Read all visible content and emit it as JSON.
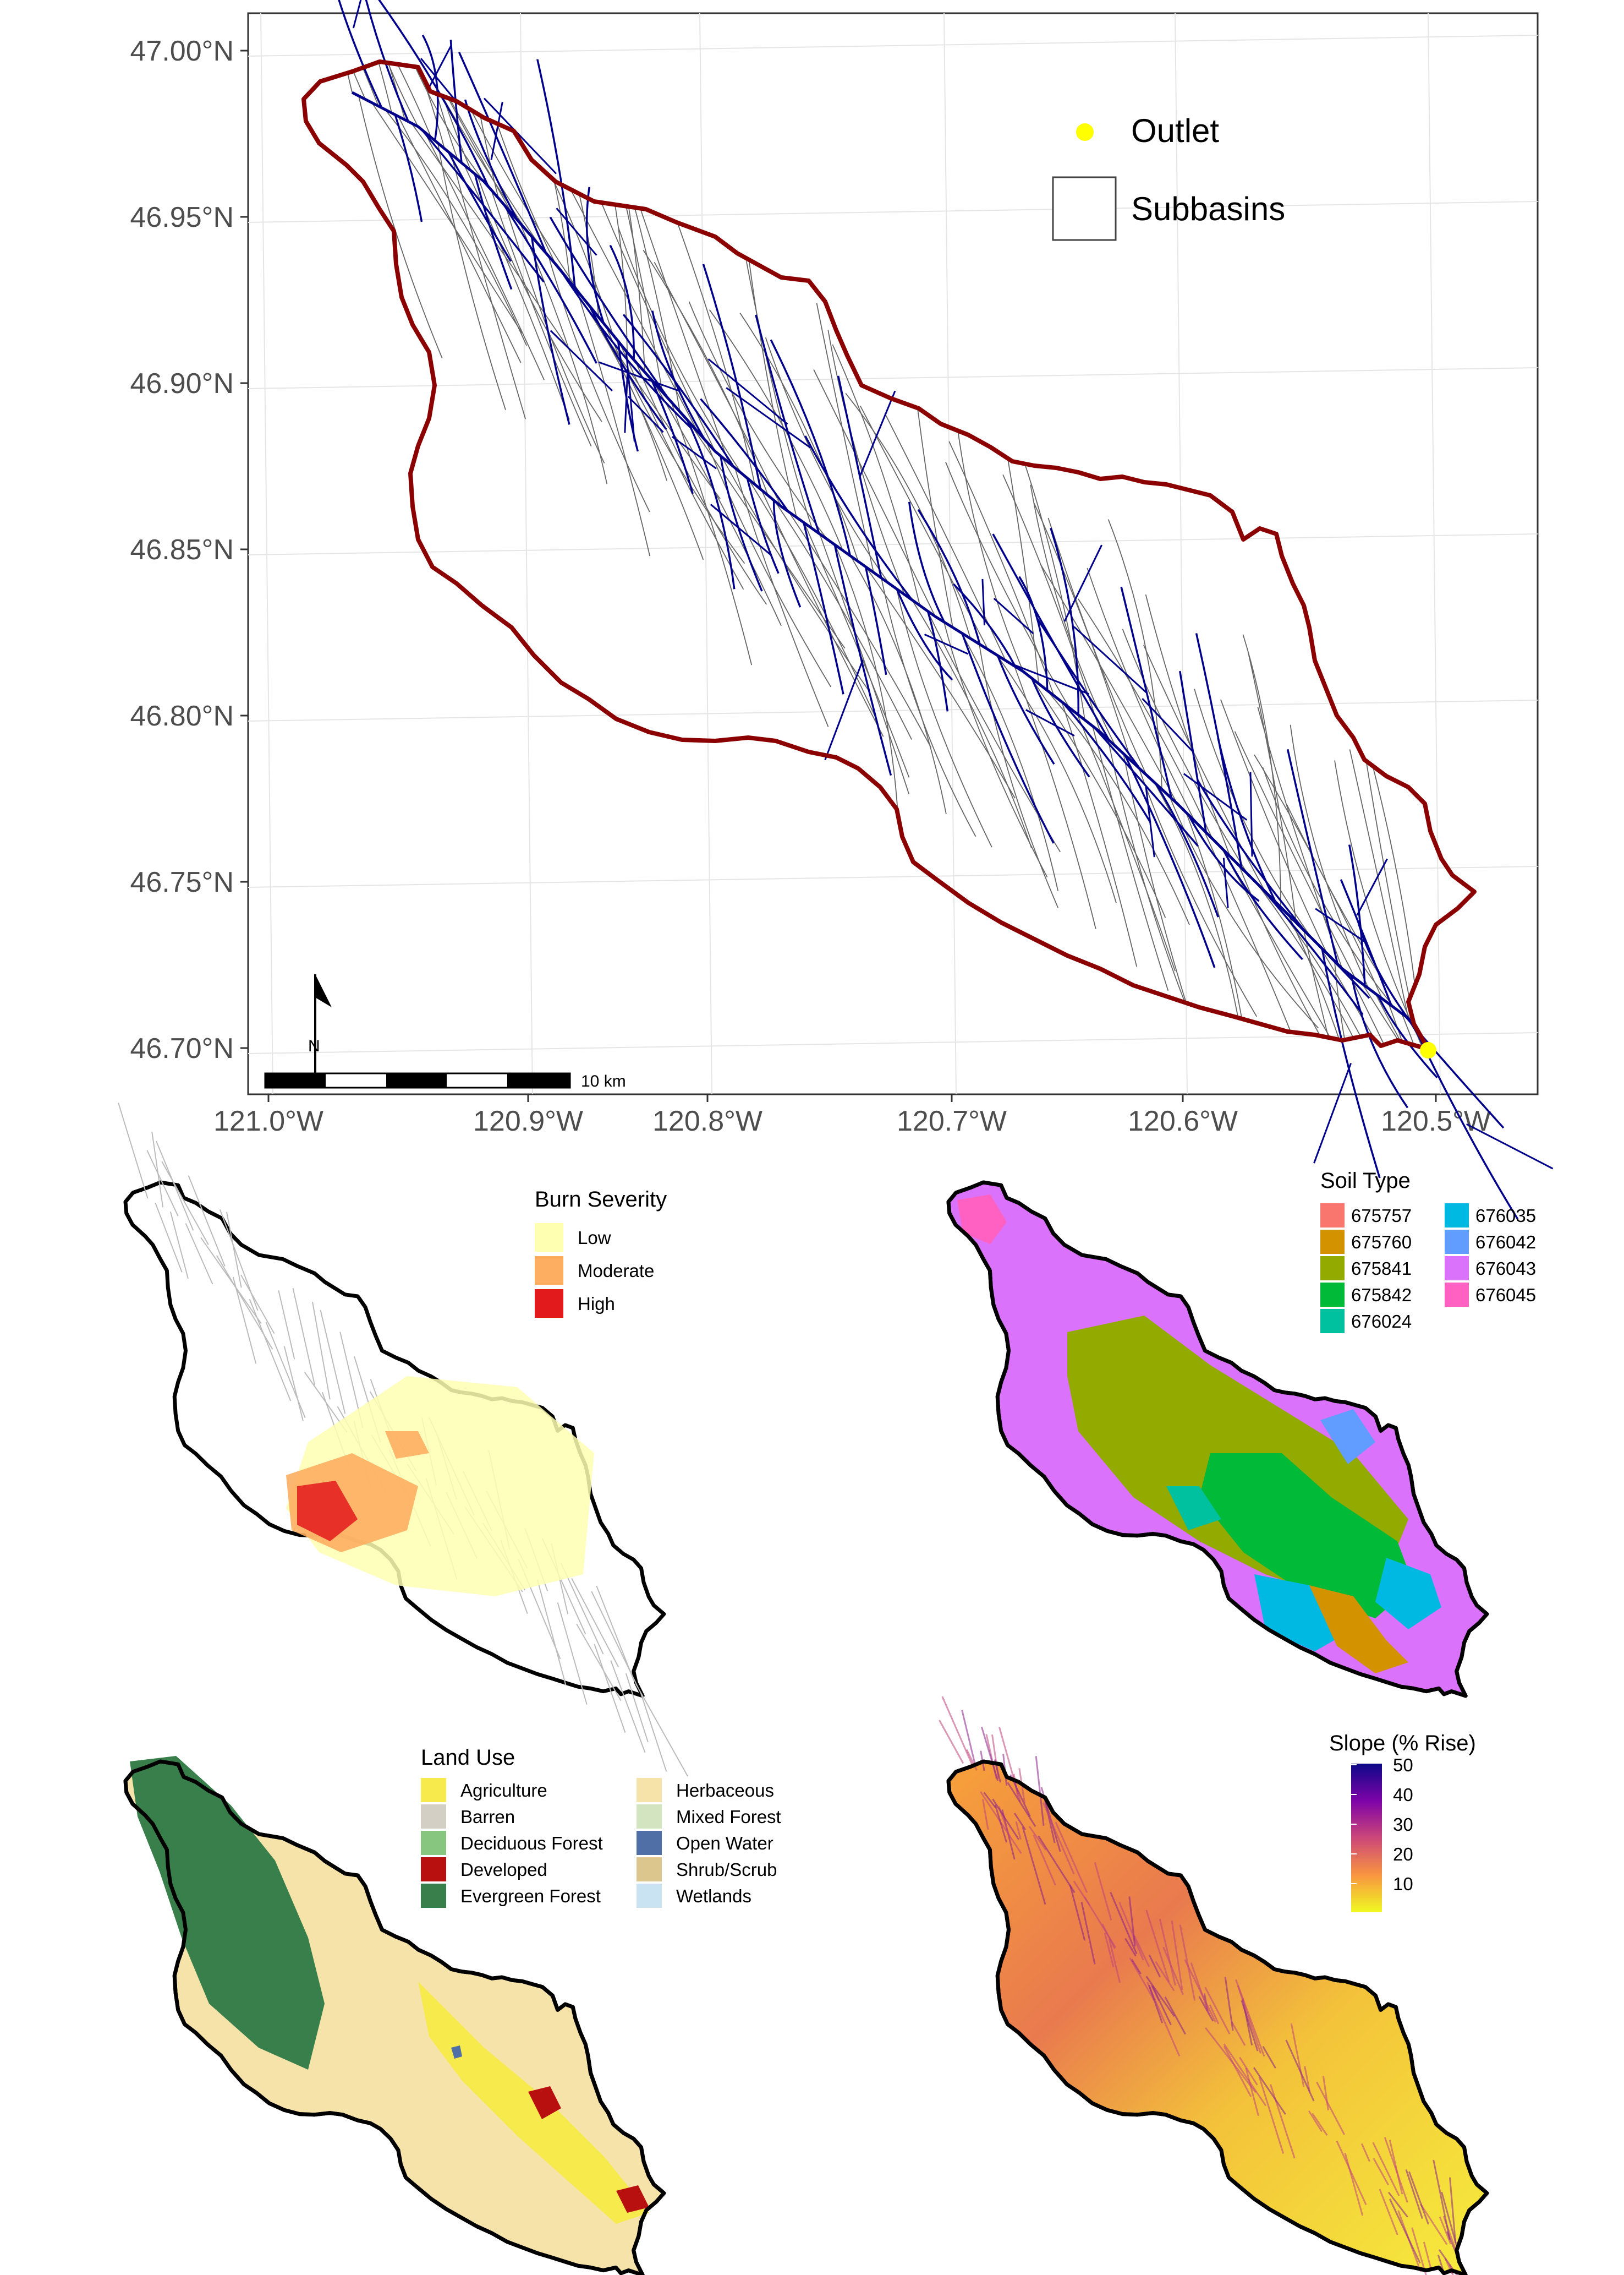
{
  "main_map": {
    "y_ticks": [
      "47.00°N",
      "46.95°N",
      "46.90°N",
      "46.85°N",
      "46.80°N",
      "46.75°N",
      "46.70°N"
    ],
    "x_ticks": [
      "121.0°W",
      "120.9°W",
      "120.8°W",
      "120.7°W",
      "120.6°W",
      "120.5°W"
    ],
    "legend": {
      "outlet_label": "Outlet",
      "subbasins_label": "Subbasins"
    },
    "scale_bar_label": "10 km",
    "north_label": "N",
    "colors": {
      "boundary": "#8b0000",
      "streams": "#00008b",
      "subbasins": "#555555",
      "outlet": "#ffff00"
    }
  },
  "burn_severity": {
    "title": "Burn Severity",
    "items": [
      {
        "label": "Low",
        "color": "#ffffb2"
      },
      {
        "label": "Moderate",
        "color": "#fdae61"
      },
      {
        "label": "High",
        "color": "#e31a1c"
      }
    ]
  },
  "soil_type": {
    "title": "Soil Type",
    "items": [
      {
        "label": "675757",
        "color": "#f8766d"
      },
      {
        "label": "675760",
        "color": "#d39200"
      },
      {
        "label": "675841",
        "color": "#93aa00"
      },
      {
        "label": "675842",
        "color": "#00ba38"
      },
      {
        "label": "676024",
        "color": "#00c19f"
      },
      {
        "label": "676035",
        "color": "#00b9e3"
      },
      {
        "label": "676042",
        "color": "#619cff"
      },
      {
        "label": "676043",
        "color": "#db72fb"
      },
      {
        "label": "676045",
        "color": "#ff61c3"
      }
    ]
  },
  "land_use": {
    "title": "Land Use",
    "items": [
      {
        "label": "Agriculture",
        "color": "#f7ea4c"
      },
      {
        "label": "Barren",
        "color": "#d4cfc4"
      },
      {
        "label": "Deciduous Forest",
        "color": "#86c67f"
      },
      {
        "label": "Developed",
        "color": "#b80f0f"
      },
      {
        "label": "Evergreen Forest",
        "color": "#387f4b"
      },
      {
        "label": "Herbaceous",
        "color": "#f6e3a9"
      },
      {
        "label": "Mixed Forest",
        "color": "#d3e4c1"
      },
      {
        "label": "Open Water",
        "color": "#4f6fa6"
      },
      {
        "label": "Shrub/Scrub",
        "color": "#dcc68d"
      },
      {
        "label": "Wetlands",
        "color": "#c9e3f2"
      }
    ]
  },
  "slope": {
    "title": "Slope (% Rise)",
    "ticks": [
      "50",
      "40",
      "30",
      "20",
      "10"
    ],
    "range": [
      0,
      50
    ],
    "colors": [
      "#0d0887",
      "#7e03a8",
      "#cc4778",
      "#f89540",
      "#f0f921"
    ]
  }
}
